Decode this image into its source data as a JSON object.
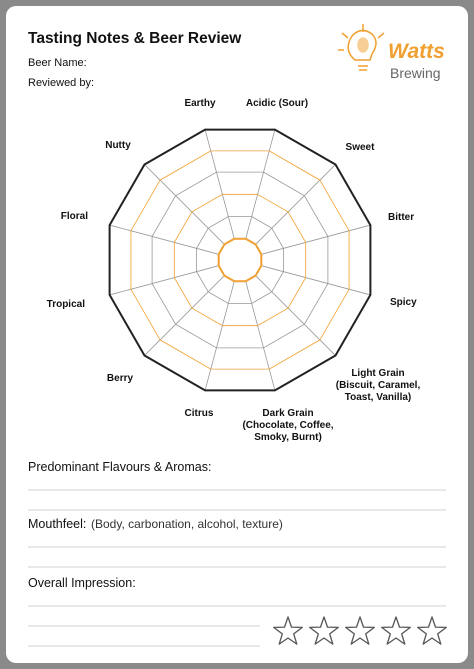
{
  "header": {
    "title": "Tasting Notes & Beer Review",
    "beer_name": "Beer Name:",
    "reviewed_by": "Reviewed by:"
  },
  "logo": {
    "brand": "Watts",
    "sub": "Brewing"
  },
  "wheel": {
    "labels": [
      [
        "Earthy"
      ],
      [
        "Acidic (Sour)"
      ],
      [
        "Sweet"
      ],
      [
        "Bitter"
      ],
      [
        "Spicy"
      ],
      [
        "Light Grain",
        "(Biscuit, Caramel,",
        "Toast, Vanilla)"
      ],
      [
        "Dark Grain",
        "(Chocolate, Coffee,",
        "Smoky, Burnt)"
      ],
      [
        "Citrus"
      ],
      [
        "Berry"
      ],
      [
        "Tropical"
      ],
      [
        "Floral"
      ],
      [
        "Nutty"
      ]
    ]
  },
  "sections": {
    "flavours": "Predominant Flavours & Aromas:",
    "mouthfeel": "Mouthfeel:",
    "mouthfeel_hint": "(Body, carbonation, alcohol, texture)",
    "impression": "Overall Impression:"
  }
}
